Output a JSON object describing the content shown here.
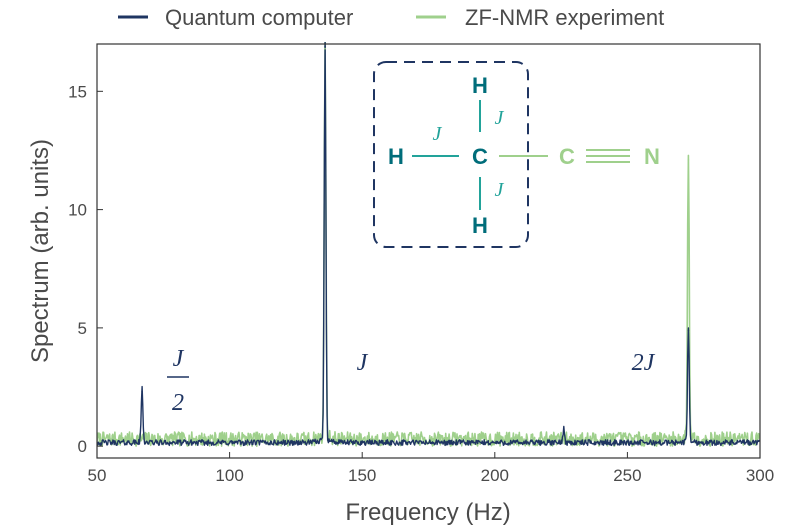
{
  "chart_data": {
    "type": "line",
    "xlabel": "Frequency (Hz)",
    "ylabel": "Spectrum (arb. units)",
    "xlim": [
      50,
      300
    ],
    "ylim": [
      -0.5,
      17
    ],
    "xticks": [
      50,
      100,
      150,
      200,
      250,
      300
    ],
    "yticks": [
      0,
      5,
      10,
      15
    ],
    "grid": false,
    "legend_position": "top",
    "series": [
      {
        "name": "Quantum computer",
        "color": "#1f3562",
        "baseline": 0.15,
        "noise": 0.12,
        "peaks": [
          {
            "x": 67,
            "y": 2.3
          },
          {
            "x": 136,
            "y": 16.9
          },
          {
            "x": 226,
            "y": 0.6
          },
          {
            "x": 273,
            "y": 4.9
          }
        ]
      },
      {
        "name": "ZF-NMR experiment",
        "color": "#9fd08c",
        "baseline": 0.3,
        "noise": 0.3,
        "peaks": [
          {
            "x": 136,
            "y": 16.8
          },
          {
            "x": 273,
            "y": 12.1
          }
        ]
      }
    ],
    "annotations": [
      {
        "label_num": "J",
        "label_den": "2",
        "x": 73,
        "y": 2.4
      },
      {
        "label": "J",
        "x": 147,
        "y": 3.4
      },
      {
        "label": "2J",
        "x": 262,
        "y": 3.4
      }
    ]
  },
  "molecule": {
    "atoms": {
      "h_top": "H",
      "h_left": "H",
      "carbon_center": "C",
      "h_bottom": "H",
      "carbon_right": "C",
      "nitrogen": "N"
    },
    "bond_labels": {
      "top": "J",
      "left": "J",
      "bottom": "J"
    },
    "colors": {
      "atom_dark": "#006d7a",
      "atom_light": "#9fd08c",
      "bond_teal": "#22a39a",
      "box": "#1f3562"
    }
  }
}
